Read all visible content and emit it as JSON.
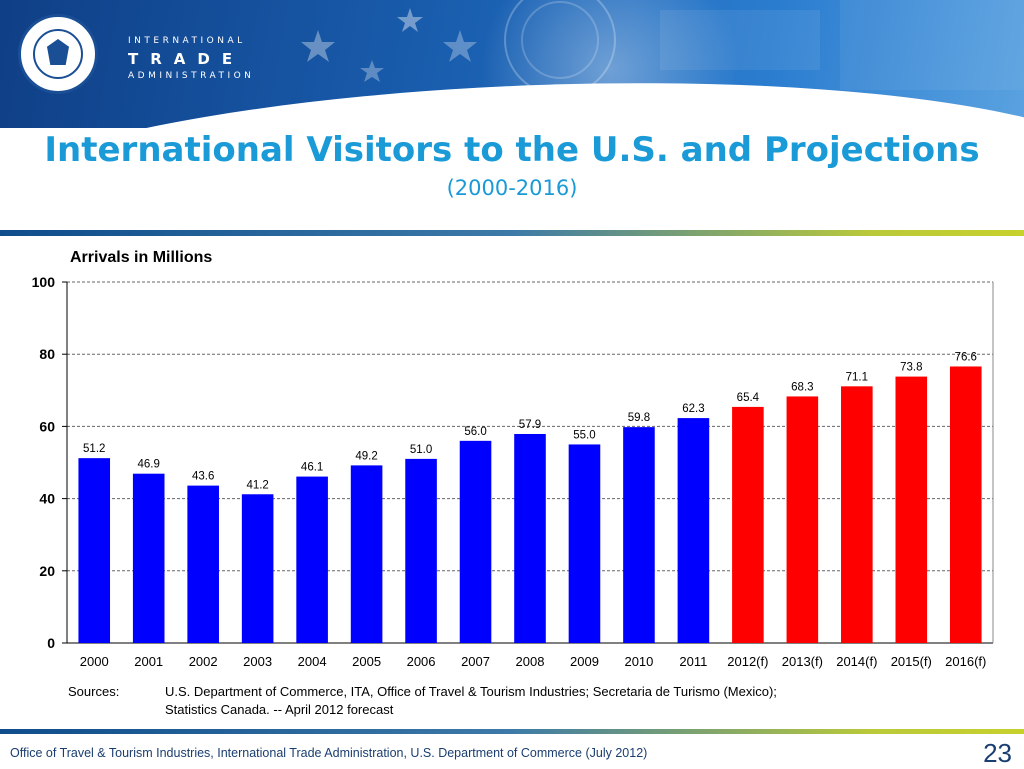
{
  "header": {
    "org_line1": "INTERNATIONAL",
    "org_line2": "TRADE",
    "org_line3": "ADMINISTRATION",
    "seal_icon": "department-of-commerce-seal-icon"
  },
  "slide": {
    "title": "International Visitors to the U.S. and Projections",
    "subtitle": "(2000-2016)",
    "page_number": "23",
    "footer": "Office of Travel & Tourism Industries, International Trade Administration, U.S. Department of Commerce (July 2012)"
  },
  "sources": {
    "label": "Sources:",
    "line1": "U.S. Department of Commerce, ITA, Office of Travel & Tourism Industries; Secretaria de Turismo (Mexico);",
    "line2": "Statistics Canada.  --  April 2012 forecast"
  },
  "chart_data": {
    "type": "bar",
    "title": "",
    "xlabel": "",
    "ylabel": "Arrivals in Millions",
    "ylim": [
      0,
      100
    ],
    "yticks": [
      0,
      20,
      40,
      60,
      80,
      100
    ],
    "grid": true,
    "categories": [
      "2000",
      "2001",
      "2002",
      "2003",
      "2004",
      "2005",
      "2006",
      "2007",
      "2008",
      "2009",
      "2010",
      "2011",
      "2012(f)",
      "2013(f)",
      "2014(f)",
      "2015(f)",
      "2016(f)"
    ],
    "values": [
      51.2,
      46.9,
      43.6,
      41.2,
      46.1,
      49.2,
      51.0,
      56.0,
      57.9,
      55.0,
      59.8,
      62.3,
      65.4,
      68.3,
      71.1,
      73.8,
      76.6
    ],
    "data_labels": [
      "51.2",
      "46.9",
      "43.6",
      "41.2",
      "46.1",
      "49.2",
      "51.0",
      "56.0",
      "57.9",
      "55.0",
      "59.8",
      "62.3",
      "65.4",
      "68.3",
      "71.1",
      "73.8",
      "76.6"
    ],
    "colors": {
      "actual": "#0000ff",
      "forecast": "#ff0000"
    },
    "forecast_start_index": 12
  }
}
